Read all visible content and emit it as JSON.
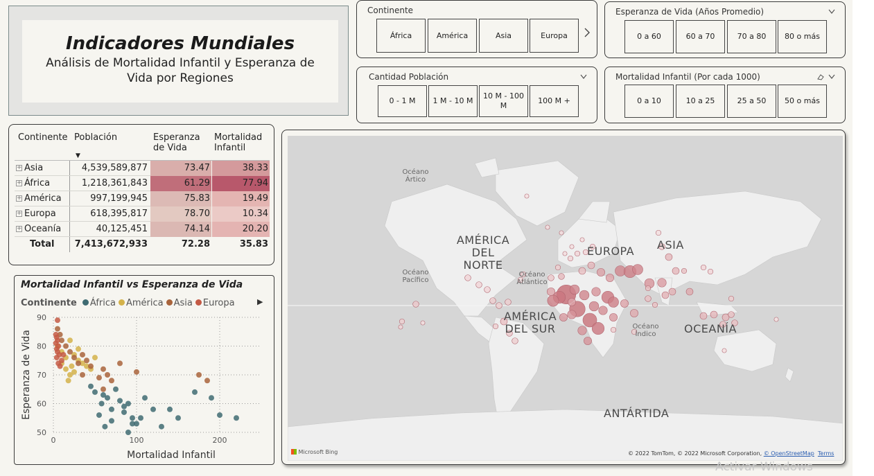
{
  "header": {
    "title": "Indicadores Mundiales",
    "subtitle": "Análisis de Mortalidad Infantil y Esperanza de Vida por Regiones"
  },
  "slicers": {
    "continente": {
      "label": "Continente",
      "options": [
        "África",
        "América",
        "Asia",
        "Europa"
      ],
      "more_icon": "chevron-right-icon"
    },
    "esperanza": {
      "label": "Esperanza de Vida (Años Promedio)",
      "options": [
        "0 a 60",
        "60 a 70",
        "70 a 80",
        "80 o más"
      ]
    },
    "poblacion": {
      "label": "Cantidad Población",
      "options": [
        "0 - 1 M",
        "1 M - 10 M",
        "10 M - 100 M",
        "100 M +"
      ]
    },
    "mortalidad": {
      "label": "Mortalidad Infantil (Por cada 1000)",
      "options": [
        "0 a 10",
        "10 a 25",
        "25 a 50",
        "50 o más"
      ]
    }
  },
  "matrix": {
    "headers": [
      "Continente",
      "Población",
      "Esperanza de Vida",
      "Mortalidad Infantil"
    ],
    "rows": [
      {
        "continente": "Asia",
        "poblacion": "4,539,589,877",
        "esperanza": "73.47",
        "mortalidad": "38.33"
      },
      {
        "continente": "África",
        "poblacion": "1,218,361,843",
        "esperanza": "61.29",
        "mortalidad": "77.94"
      },
      {
        "continente": "América",
        "poblacion": "997,199,945",
        "esperanza": "75.83",
        "mortalidad": "19.49"
      },
      {
        "continente": "Europa",
        "poblacion": "618,395,817",
        "esperanza": "78.70",
        "mortalidad": "10.34"
      },
      {
        "continente": "Oceanía",
        "poblacion": "40,125,451",
        "esperanza": "74.14",
        "mortalidad": "20.20"
      }
    ],
    "total": {
      "label": "Total",
      "poblacion": "7,413,672,933",
      "esperanza": "72.28",
      "mortalidad": "35.83"
    },
    "cell_colors": {
      "esperanza": [
        "#d9aeab",
        "#c06e7a",
        "#dcbab5",
        "#e3c9c1",
        "#dbb8b3"
      ],
      "mortalidad": [
        "#d49a9c",
        "#b8586b",
        "#e4b5b2",
        "#ebcac6",
        "#e4b4b2"
      ]
    }
  },
  "map": {
    "labels": {
      "america_norte": "AMÉRICA DEL NORTE",
      "america_sur": "AMÉRICA DEL SUR",
      "europa": "EUROPA",
      "asia": "ASIA",
      "oceania": "OCEANÍA",
      "antartida": "ANTÁRTIDA",
      "oceano_artico": "Océano Ártico",
      "oceano_pacifico": "Océano Pacífico",
      "oceano_atlantico": "Océano Atlántico",
      "oceano_indico": "Océano Índico"
    },
    "attribution": "© 2022 TomTom, © 2022 Microsoft Corporation,",
    "osm_link": "© OpenStreetMap",
    "terms_link": "Terms",
    "bing_logo": "Microsoft Bing"
  },
  "chart_data": {
    "type": "scatter",
    "title": "Mortalidad Infantil vs Esperanza de Vida",
    "xlabel": "Mortalidad Infantil",
    "ylabel": "Esperanza de Vida",
    "xlim": [
      0,
      250
    ],
    "ylim": [
      50,
      90
    ],
    "xticks": [
      0,
      100,
      200
    ],
    "yticks": [
      50,
      60,
      70,
      80,
      90
    ],
    "grid": true,
    "legend_title": "Continente",
    "legend_placement": "top",
    "series": [
      {
        "name": "África",
        "color": "#3f6b72",
        "points": [
          [
            50,
            64
          ],
          [
            60,
            63
          ],
          [
            65,
            62
          ],
          [
            70,
            58
          ],
          [
            80,
            61
          ],
          [
            85,
            57
          ],
          [
            90,
            60
          ],
          [
            95,
            55
          ],
          [
            100,
            53
          ],
          [
            110,
            62
          ],
          [
            120,
            58
          ],
          [
            150,
            55
          ],
          [
            200,
            56
          ],
          [
            220,
            55
          ],
          [
            190,
            62
          ],
          [
            170,
            64
          ],
          [
            55,
            56
          ],
          [
            62,
            52
          ],
          [
            70,
            54
          ],
          [
            85,
            59
          ],
          [
            95,
            53
          ],
          [
            45,
            66
          ],
          [
            58,
            60
          ],
          [
            75,
            65
          ],
          [
            90,
            50
          ],
          [
            105,
            55
          ],
          [
            130,
            52
          ],
          [
            140,
            58
          ]
        ]
      },
      {
        "name": "América",
        "color": "#d4b24a",
        "points": [
          [
            5,
            80
          ],
          [
            10,
            78
          ],
          [
            15,
            76
          ],
          [
            20,
            82
          ],
          [
            25,
            77
          ],
          [
            30,
            75
          ],
          [
            35,
            74
          ],
          [
            40,
            73
          ],
          [
            15,
            72
          ],
          [
            20,
            70
          ],
          [
            25,
            71
          ],
          [
            10,
            74
          ],
          [
            30,
            79
          ],
          [
            45,
            72
          ],
          [
            50,
            76
          ],
          [
            18,
            68
          ],
          [
            22,
            73
          ]
        ]
      },
      {
        "name": "Asia",
        "color": "#a9643c",
        "points": [
          [
            5,
            86
          ],
          [
            8,
            84
          ],
          [
            10,
            82
          ],
          [
            15,
            80
          ],
          [
            20,
            78
          ],
          [
            25,
            76
          ],
          [
            30,
            74
          ],
          [
            35,
            77
          ],
          [
            40,
            75
          ],
          [
            45,
            73
          ],
          [
            55,
            69
          ],
          [
            60,
            72
          ],
          [
            65,
            70
          ],
          [
            70,
            68
          ],
          [
            80,
            74
          ],
          [
            100,
            71
          ],
          [
            175,
            70
          ],
          [
            185,
            68
          ],
          [
            60,
            65
          ],
          [
            35,
            70
          ]
        ]
      },
      {
        "name": "Europa",
        "color": "#c45a45",
        "points": [
          [
            3,
            81
          ],
          [
            4,
            83
          ],
          [
            5,
            82
          ],
          [
            4,
            79
          ],
          [
            6,
            80
          ],
          [
            3,
            84
          ],
          [
            5,
            78
          ],
          [
            7,
            77
          ],
          [
            4,
            76
          ],
          [
            6,
            74
          ],
          [
            5,
            89
          ],
          [
            8,
            73
          ],
          [
            10,
            75
          ],
          [
            12,
            77
          ]
        ]
      }
    ]
  }
}
